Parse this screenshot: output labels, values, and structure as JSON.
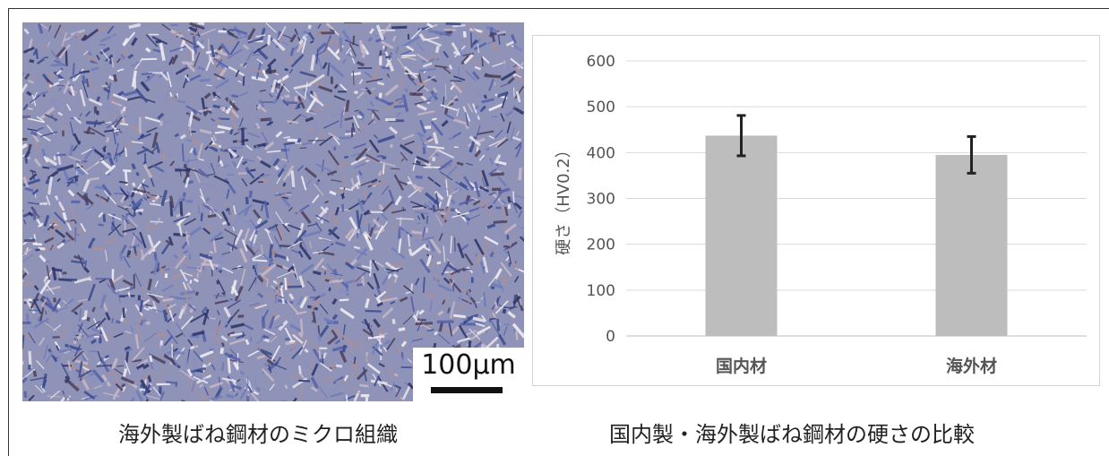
{
  "micrograph": {
    "scale_label": "100μm"
  },
  "captions": {
    "left": "海外製ばね鋼材のミクロ組織",
    "right": "国内製・海外製ばね鋼材の硬さの比較"
  },
  "colors": {
    "bar": "#bdbdbd",
    "error_bar": "#222222",
    "grid": "#d9d9d9"
  },
  "chart_data": {
    "type": "bar",
    "categories": [
      "国内材",
      "海外材"
    ],
    "values": [
      437,
      395
    ],
    "errors": [
      44,
      40
    ],
    "title": "",
    "xlabel": "",
    "ylabel": "硬さ（HV0.2）",
    "ylim": [
      0,
      600
    ],
    "yticks": [
      0,
      100,
      200,
      300,
      400,
      500,
      600
    ],
    "grid": true,
    "legend": "none"
  }
}
